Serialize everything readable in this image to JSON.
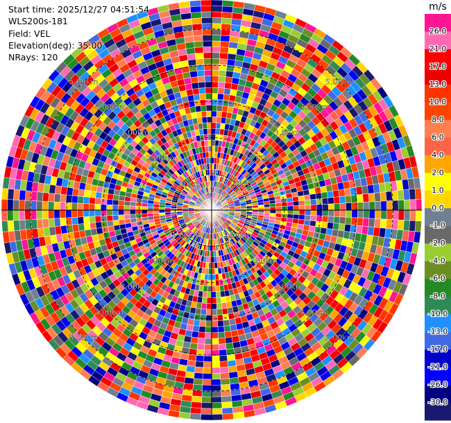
{
  "info": {
    "start_time": "Start time: 2025/12/27 04:51:54",
    "instrument": "WLS200s-181",
    "field": "Field: VEL",
    "elevation": "Elevation(deg): 35.00",
    "nrays": "NRays: 120"
  },
  "chart_data": {
    "type": "heatmap",
    "subtype": "polar-ppi",
    "field": "VEL",
    "n_rays": 120,
    "range_rings": [
      {
        "label": "1.00km",
        "value": 1.0
      },
      {
        "label": "2.00km",
        "value": 2.0
      },
      {
        "label": "3.00km",
        "value": 3.0
      },
      {
        "label": "4.00km",
        "value": 4.0
      },
      {
        "label": "5.00km",
        "value": 5.0
      }
    ],
    "max_range_km": 5.8,
    "colorbar": {
      "unit": "m/s",
      "ticks": [
        "26.0",
        "21.0",
        "17.0",
        "13.0",
        "10.0",
        "8.0",
        "6.0",
        "4.0",
        "2.0",
        "1.0",
        "0.0",
        "-1.0",
        "-2.0",
        "-4.0",
        "-6.0",
        "-8.0",
        "-10.0",
        "-13.0",
        "-17.0",
        "-21.0",
        "-26.0",
        "-30.0"
      ],
      "colors": [
        "#ff1493",
        "#ff69b4",
        "#ff0000",
        "#ee0000",
        "#ff3300",
        "#ff4500",
        "#ff7f50",
        "#ff6347",
        "#ffa500",
        "#ffff00",
        "#ffd700",
        "#708090",
        "#696969",
        "#9acd32",
        "#6b8e23",
        "#228b22",
        "#2e8b57",
        "#1e90ff",
        "#4169e1",
        "#0000cd",
        "#0000ff",
        "#000080",
        "#191970"
      ]
    }
  }
}
